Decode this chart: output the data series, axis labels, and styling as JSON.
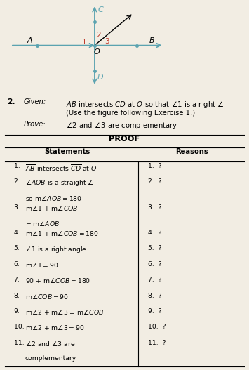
{
  "figure_bg": "#f2ede3",
  "diagram": {
    "line_color": "#5ba3b0",
    "angle_label_color_red": "#c0392b",
    "point_color": "#5ba3b0"
  },
  "proof_title": "PROOF",
  "col_header_statements": "Statements",
  "col_header_reasons": "Reasons",
  "rows": [
    {
      "num": "1.",
      "statement": "$\\overline{AB}$ intersects $\\overline{CD}$ at $O$",
      "reason": "1.  ?",
      "continuation": false
    },
    {
      "num": "2.",
      "statement": "$\\angle AOB$ is a straight $\\angle$,",
      "reason": "2.  ?",
      "continuation": false
    },
    {
      "num": "",
      "statement": "so m$\\angle AOB = 180$",
      "reason": "",
      "continuation": true
    },
    {
      "num": "3.",
      "statement": "m$\\angle 1$ + m$\\angle COB$",
      "reason": "3.  ?",
      "continuation": false
    },
    {
      "num": "",
      "statement": "= m$\\angle AOB$",
      "reason": "",
      "continuation": true
    },
    {
      "num": "4.",
      "statement": "m$\\angle 1$ + m$\\angle COB = 180$",
      "reason": "4.  ?",
      "continuation": false
    },
    {
      "num": "5.",
      "statement": "$\\angle 1$ is a right angle",
      "reason": "5.  ?",
      "continuation": false
    },
    {
      "num": "6.",
      "statement": "m$\\angle 1 = 90$",
      "reason": "6.  ?",
      "continuation": false
    },
    {
      "num": "7.",
      "statement": "$90$ + m$\\angle COB = 180$",
      "reason": "7.  ?",
      "continuation": false
    },
    {
      "num": "8.",
      "statement": "m$\\angle COB = 90$",
      "reason": "8.  ?",
      "continuation": false
    },
    {
      "num": "9.",
      "statement": "m$\\angle 2$ + m$\\angle 3$ = m$\\angle COB$",
      "reason": "9.  ?",
      "continuation": false
    },
    {
      "num": "10.",
      "statement": "m$\\angle 2$ + m$\\angle 3 = 90$",
      "reason": "10.  ?",
      "continuation": false
    },
    {
      "num": "11.",
      "statement": "$\\angle 2$ and $\\angle 3$ are",
      "reason": "11.  ?",
      "continuation": false
    },
    {
      "num": "",
      "statement": "complementary",
      "reason": "",
      "continuation": true
    }
  ]
}
